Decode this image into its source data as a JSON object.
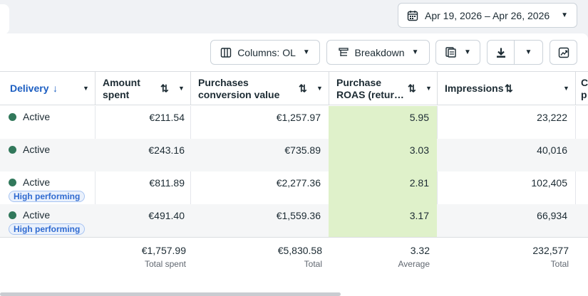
{
  "date_range": {
    "label": "Apr 19, 2026 – Apr 26, 2026"
  },
  "toolbar": {
    "columns_label": "Columns: OL",
    "breakdown_label": "Breakdown"
  },
  "columns": {
    "delivery": "Delivery",
    "amount_spent_1": "Amount",
    "amount_spent_2": "spent",
    "purchases_cv_1": "Purchases",
    "purchases_cv_2": "conversion value",
    "roas_1": "Purchase",
    "roas_2": "ROAS (retur…",
    "impressions": "Impressions",
    "next_partial_1": "C",
    "next_partial_2": "p"
  },
  "sort_glyph": "⇅",
  "rows": [
    {
      "status": "Active",
      "badge": "",
      "amount_spent": "€211.54",
      "purchases_conversion_value": "€1,257.97",
      "roas": "5.95",
      "impressions": "23,222"
    },
    {
      "status": "Active",
      "badge": "",
      "amount_spent": "€243.16",
      "purchases_conversion_value": "€735.89",
      "roas": "3.03",
      "impressions": "40,016"
    },
    {
      "status": "Active",
      "badge": "High performing",
      "amount_spent": "€811.89",
      "purchases_conversion_value": "€2,277.36",
      "roas": "2.81",
      "impressions": "102,405"
    },
    {
      "status": "Active",
      "badge": "High performing",
      "amount_spent": "€491.40",
      "purchases_conversion_value": "€1,559.36",
      "roas": "3.17",
      "impressions": "66,934"
    }
  ],
  "totals": {
    "amount_spent": "€1,757.99",
    "amount_spent_label": "Total spent",
    "purchases_conversion_value": "€5,830.58",
    "purchases_conversion_value_label": "Total",
    "roas": "3.32",
    "roas_label": "Average",
    "impressions": "232,577",
    "impressions_label": "Total"
  },
  "colors": {
    "active_dot": "#31785b",
    "roas_highlight": "#dff1ca",
    "sort_active": "#1d5fc2",
    "badge_text": "#2f6ad0"
  },
  "icons": [
    "calendar-icon",
    "columns-icon",
    "breakdown-icon",
    "reports-icon",
    "download-icon",
    "chart-icon",
    "sort-down-arrow-icon",
    "caret-down-icon"
  ]
}
